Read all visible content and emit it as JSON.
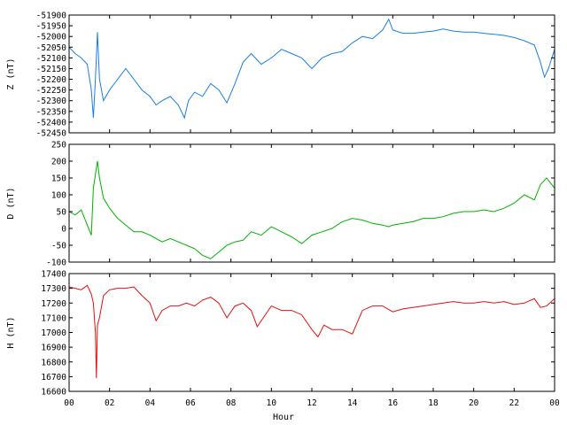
{
  "chart_data": {
    "type": "line",
    "xlabel": "Hour",
    "x_ticks": [
      "00",
      "02",
      "04",
      "06",
      "08",
      "10",
      "12",
      "14",
      "16",
      "18",
      "20",
      "22",
      "00"
    ],
    "xlim": [
      0,
      24
    ],
    "panels": [
      {
        "ylabel": "Z (nT)",
        "color": "#1a7fe0",
        "ylim": [
          -52450,
          -51900
        ],
        "y_ticks": [
          -51900,
          -51950,
          -52000,
          -52050,
          -52100,
          -52150,
          -52200,
          -52250,
          -52300,
          -52350,
          -52400,
          -52450
        ],
        "series": [
          {
            "x": [
              0,
              0.3,
              0.6,
              0.9,
              1.1,
              1.2,
              1.3,
              1.4,
              1.5,
              1.7,
              2.0,
              2.4,
              2.8,
              3.2,
              3.6,
              4.0,
              4.3,
              4.6,
              5.0,
              5.4,
              5.7,
              5.9,
              6.2,
              6.6,
              7.0,
              7.4,
              7.8,
              8.2,
              8.6,
              9.0,
              9.5,
              10.0,
              10.5,
              11.0,
              11.5,
              12.0,
              12.5,
              13.0,
              13.5,
              14.0,
              14.5,
              15.0,
              15.5,
              15.8,
              16.0,
              16.5,
              17.0,
              17.5,
              18.0,
              18.5,
              19.0,
              19.5,
              20.0,
              20.5,
              21.0,
              21.5,
              22.0,
              22.5,
              23.0,
              23.3,
              23.5,
              23.7,
              24.0
            ],
            "y": [
              -52050,
              -52080,
              -52100,
              -52130,
              -52250,
              -52380,
              -52200,
              -51980,
              -52200,
              -52300,
              -52250,
              -52200,
              -52150,
              -52200,
              -52250,
              -52280,
              -52320,
              -52300,
              -52280,
              -52320,
              -52380,
              -52300,
              -52260,
              -52280,
              -52220,
              -52250,
              -52310,
              -52220,
              -52120,
              -52080,
              -52130,
              -52100,
              -52060,
              -52080,
              -52100,
              -52150,
              -52100,
              -52080,
              -52070,
              -52030,
              -52000,
              -52010,
              -51970,
              -51920,
              -51970,
              -51985,
              -51985,
              -51980,
              -51975,
              -51965,
              -51975,
              -51980,
              -51980,
              -51985,
              -51990,
              -51995,
              -52005,
              -52020,
              -52040,
              -52120,
              -52190,
              -52150,
              -52060
            ]
          }
        ]
      },
      {
        "ylabel": "D (nT)",
        "color": "#00b000",
        "ylim": [
          -100,
          250
        ],
        "y_ticks": [
          250,
          200,
          150,
          100,
          50,
          0,
          -50,
          -100
        ],
        "series": [
          {
            "x": [
              0,
              0.3,
              0.6,
              0.9,
              1.1,
              1.2,
              1.3,
              1.4,
              1.5,
              1.7,
              2.0,
              2.4,
              2.8,
              3.2,
              3.6,
              4.0,
              4.3,
              4.6,
              5.0,
              5.4,
              5.8,
              6.2,
              6.6,
              7.0,
              7.4,
              7.8,
              8.2,
              8.6,
              9.0,
              9.5,
              10.0,
              10.5,
              11.0,
              11.5,
              12.0,
              12.5,
              13.0,
              13.5,
              14.0,
              14.5,
              15.0,
              15.5,
              15.8,
              16.0,
              16.5,
              17.0,
              17.5,
              18.0,
              18.5,
              19.0,
              19.5,
              20.0,
              20.5,
              21.0,
              21.5,
              22.0,
              22.5,
              23.0,
              23.3,
              23.6,
              24.0
            ],
            "y": [
              50,
              40,
              55,
              10,
              -20,
              120,
              160,
              200,
              150,
              90,
              60,
              30,
              10,
              -10,
              -10,
              -20,
              -30,
              -40,
              -30,
              -40,
              -50,
              -60,
              -80,
              -90,
              -70,
              -50,
              -40,
              -35,
              -10,
              -20,
              5,
              -10,
              -25,
              -45,
              -20,
              -10,
              0,
              20,
              30,
              25,
              15,
              10,
              5,
              10,
              15,
              20,
              30,
              30,
              35,
              45,
              50,
              50,
              55,
              50,
              60,
              75,
              100,
              85,
              130,
              150,
              120
            ]
          }
        ]
      },
      {
        "ylabel": "H (nT)",
        "color": "#e01010",
        "ylim": [
          16600,
          17400
        ],
        "y_ticks": [
          17400,
          17300,
          17200,
          17100,
          17000,
          16900,
          16800,
          16700,
          16600
        ],
        "series": [
          {
            "x": [
              0,
              0.3,
              0.6,
              0.9,
              1.1,
              1.2,
              1.3,
              1.35,
              1.4,
              1.5,
              1.7,
              2.0,
              2.4,
              2.8,
              3.2,
              3.6,
              4.0,
              4.3,
              4.6,
              5.0,
              5.4,
              5.8,
              6.2,
              6.6,
              7.0,
              7.4,
              7.8,
              8.2,
              8.6,
              9.0,
              9.3,
              9.6,
              10.0,
              10.5,
              11.0,
              11.5,
              12.0,
              12.3,
              12.6,
              13.0,
              13.5,
              14.0,
              14.5,
              15.0,
              15.5,
              16.0,
              16.5,
              17.0,
              17.5,
              18.0,
              18.5,
              19.0,
              19.5,
              20.0,
              20.5,
              21.0,
              21.5,
              22.0,
              22.5,
              23.0,
              23.3,
              23.6,
              24.0
            ],
            "y": [
              17310,
              17300,
              17290,
              17320,
              17260,
              17200,
              17000,
              16690,
              17050,
              17100,
              17250,
              17290,
              17300,
              17300,
              17310,
              17250,
              17200,
              17080,
              17150,
              17180,
              17180,
              17200,
              17180,
              17220,
              17240,
              17200,
              17100,
              17180,
              17200,
              17150,
              17040,
              17100,
              17180,
              17150,
              17150,
              17120,
              17020,
              16970,
              17050,
              17020,
              17020,
              16990,
              17150,
              17180,
              17180,
              17140,
              17160,
              17170,
              17180,
              17190,
              17200,
              17210,
              17200,
              17200,
              17210,
              17200,
              17210,
              17190,
              17200,
              17230,
              17170,
              17180,
              17230
            ]
          }
        ]
      }
    ]
  }
}
